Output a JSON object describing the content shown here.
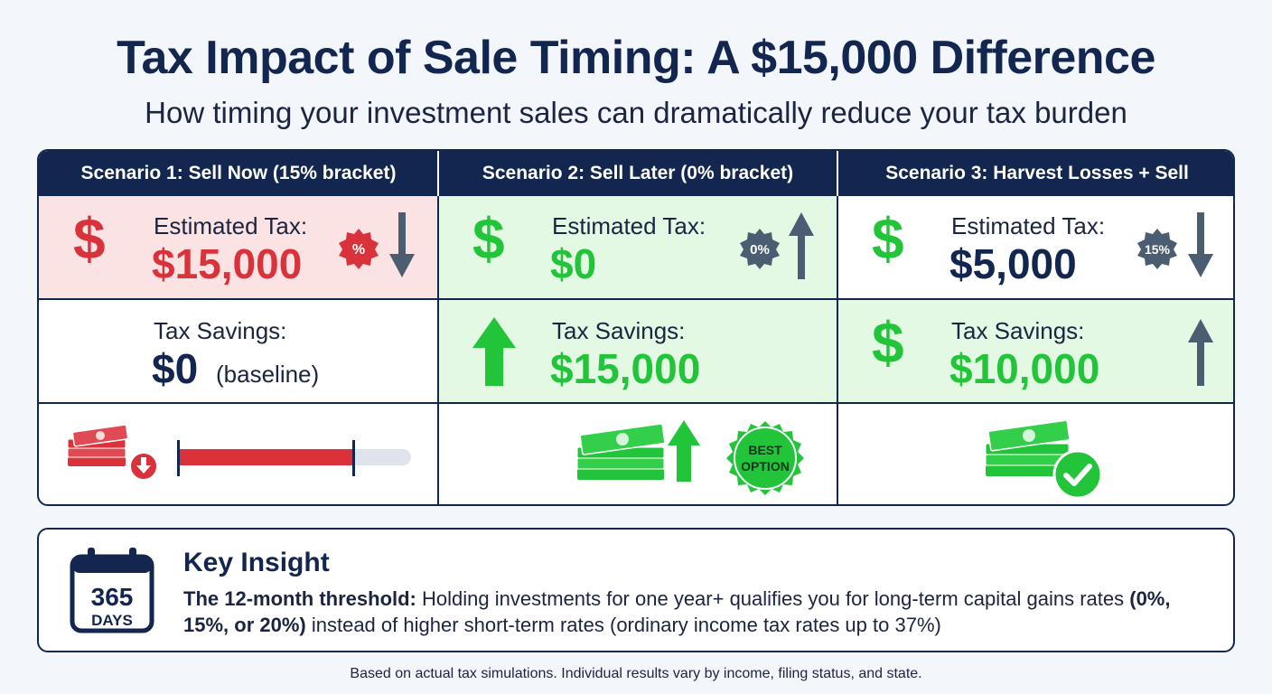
{
  "title": "Tax Impact of Sale Timing: A $15,000 Difference",
  "subtitle": "How timing your investment sales can dramatically reduce your tax burden",
  "scenarios": [
    {
      "header": "Scenario 1: Sell Now (15% bracket)",
      "tax_label": "Estimated Tax:",
      "tax_value": "$15,000",
      "tax_badge": "%",
      "savings_label": "Tax Savings:",
      "savings_value": "$0",
      "savings_note": "(baseline)",
      "tax_bar_fraction": 0.75
    },
    {
      "header": "Scenario 2: Sell Later (0% bracket)",
      "tax_label": "Estimated Tax:",
      "tax_value": "$0",
      "tax_badge": "0%",
      "savings_label": "Tax Savings:",
      "savings_value": "$15,000",
      "best_badge_line1": "BEST",
      "best_badge_line2": "OPTION"
    },
    {
      "header": "Scenario 3: Harvest Losses + Sell",
      "tax_label": "Estimated Tax:",
      "tax_value": "$5,000",
      "tax_badge": "15%",
      "savings_label": "Tax Savings:",
      "savings_value": "$10,000"
    }
  ],
  "insight": {
    "calendar_number": "365",
    "calendar_unit": "DAYS",
    "title": "Key Insight",
    "lead": "The 12-month threshold:",
    "text1": " Holding investments for one year+ qualifies you for long-term capital gains rates ",
    "bold2": "(0%, 15%, or 20%)",
    "text2": " instead of higher short-term rates (ordinary income tax rates up to 37%)"
  },
  "footnote": "Based on actual tax simulations. Individual results vary by income, filing status, and state.",
  "colors": {
    "navy": "#12264f",
    "red": "#d9323b",
    "green": "#22c43a",
    "slate": "#4b5d70",
    "red_bg": "#fbe3e3",
    "green_bg": "#e4f9e3"
  },
  "icons": [
    "dollar-icon",
    "percent-badge-icon",
    "arrow-down-icon",
    "arrow-up-icon",
    "money-stack-icon",
    "checkmark-icon",
    "calendar-icon",
    "best-option-seal-icon"
  ]
}
